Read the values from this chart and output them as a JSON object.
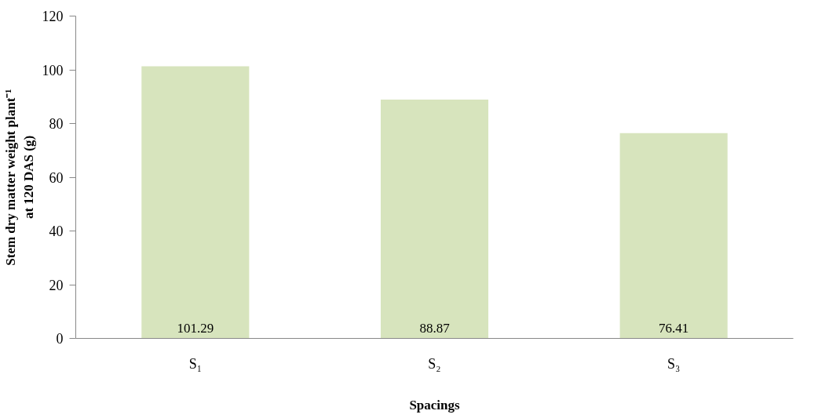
{
  "chart_data": {
    "type": "bar",
    "xlabel": "Spacings",
    "ylabel": "Stem dry matter weight plant⁻¹ at 120 DAS (g)",
    "categories": [
      "S₁",
      "S₂",
      "S₃"
    ],
    "values": [
      101.29,
      88.87,
      76.41
    ],
    "color": "#d7e4bd",
    "ylim": [
      0,
      120
    ],
    "yticks": [
      0,
      20,
      40,
      60,
      80,
      100,
      120
    ],
    "grid": false,
    "data_labels": true
  }
}
